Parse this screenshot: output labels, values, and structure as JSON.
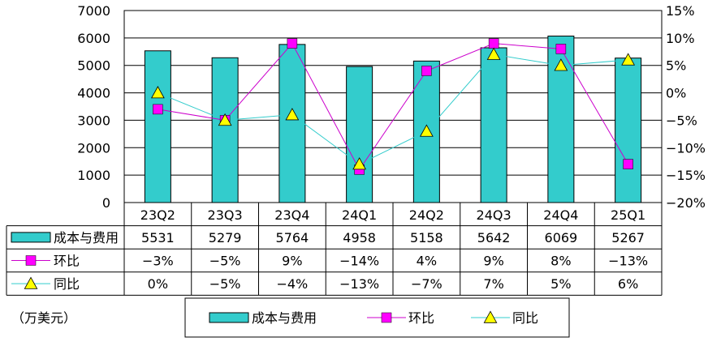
{
  "chart_data": {
    "type": "bar",
    "categories": [
      "23Q2",
      "23Q3",
      "23Q4",
      "24Q1",
      "24Q2",
      "24Q3",
      "24Q4",
      "25Q1"
    ],
    "left_axis": {
      "ylim": [
        0,
        7000
      ],
      "ticks": [
        "0",
        "1000",
        "2000",
        "3000",
        "4000",
        "5000",
        "6000",
        "7000"
      ]
    },
    "right_axis": {
      "ylim": [
        -20,
        15
      ],
      "ticks": [
        "-20%",
        "-15%",
        "-10%",
        "-5%",
        "0%",
        "5%",
        "10%",
        "15%"
      ]
    },
    "series": [
      {
        "name": "成本与费用",
        "kind": "bar",
        "axis": "left",
        "color": "#33CCCC",
        "values": [
          5531,
          5279,
          5764,
          4958,
          5158,
          5642,
          6069,
          5267
        ]
      },
      {
        "name": "环比",
        "kind": "line",
        "axis": "right",
        "color": "#CC00CC",
        "marker": "square",
        "marker_color": "#FF00FF",
        "values": [
          -3,
          -5,
          9,
          -14,
          4,
          9,
          8,
          -13
        ]
      },
      {
        "name": "同比",
        "kind": "line",
        "axis": "right",
        "color": "#33CCCC",
        "marker": "triangle",
        "marker_color": "#FFFF00",
        "values": [
          0,
          -5,
          -4,
          -13,
          -7,
          7,
          5,
          6
        ]
      }
    ],
    "table_rows": [
      {
        "label": "成本与费用",
        "cells": [
          "5531",
          "5279",
          "5764",
          "4958",
          "5158",
          "5642",
          "6069",
          "5267"
        ]
      },
      {
        "label": "环比",
        "cells": [
          "-3%",
          "-5%",
          "9%",
          "-14%",
          "4%",
          "9%",
          "8%",
          "-13%"
        ]
      },
      {
        "label": "同比",
        "cells": [
          "0%",
          "-5%",
          "-4%",
          "-13%",
          "-7%",
          "7%",
          "5%",
          "6%"
        ]
      }
    ],
    "unit_label": "（万美元）",
    "legend": {
      "position": "bottom",
      "items": [
        "成本与费用",
        "环比",
        "同比"
      ]
    },
    "grid": true
  }
}
